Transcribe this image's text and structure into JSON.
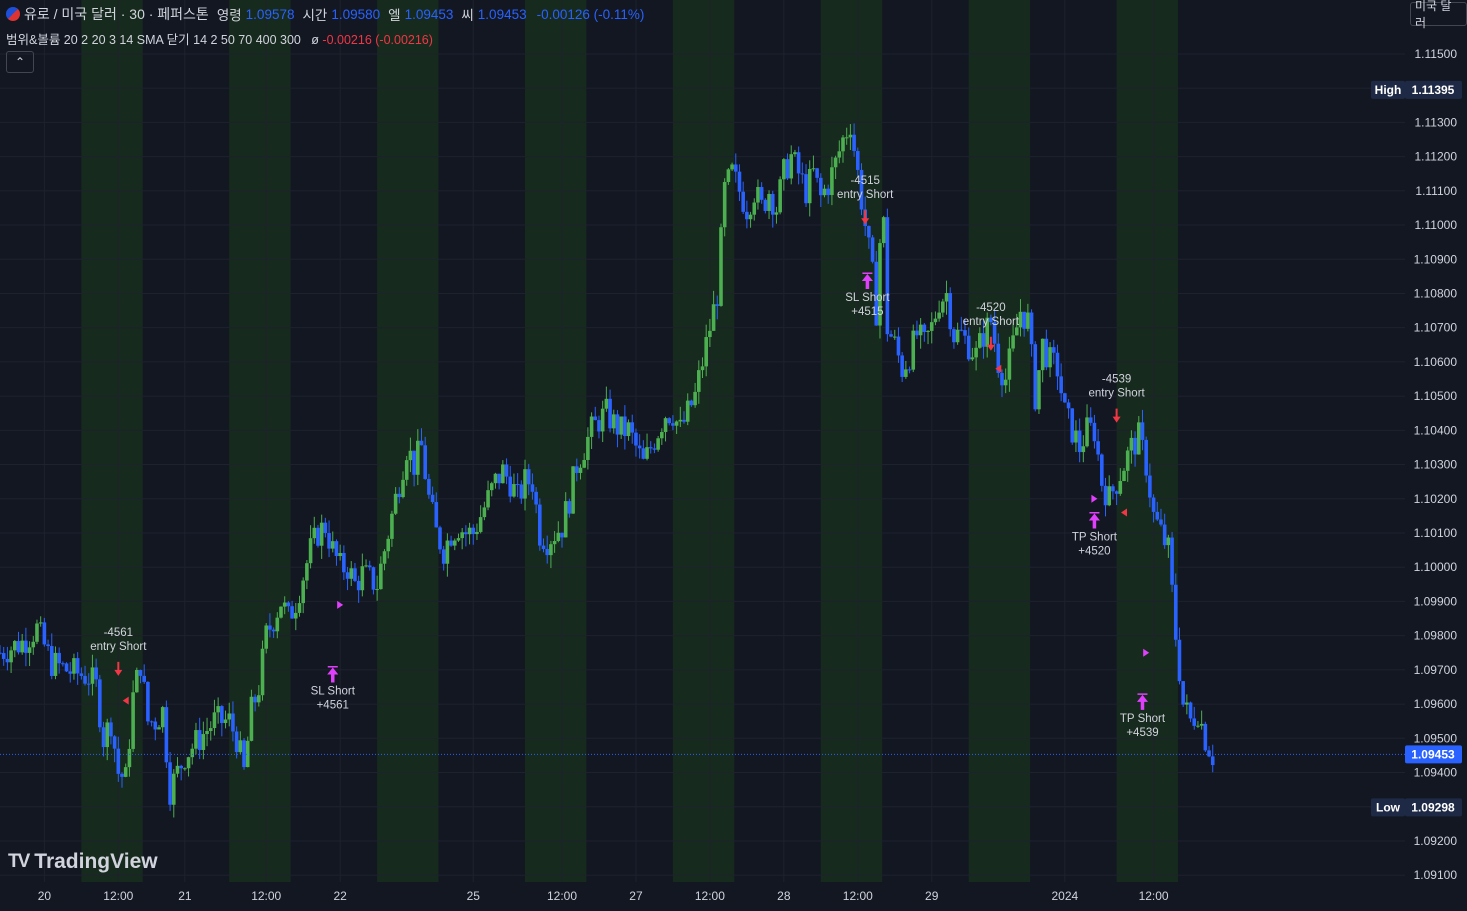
{
  "header": {
    "symbol": "유로 / 미국 달러 · 30 · 페퍼스톤",
    "open_label": "영령",
    "open": "1.09578",
    "high_label": "시간",
    "high": "1.09580",
    "low_label": "엘",
    "low": "1.09453",
    "close_label": "씨",
    "close": "1.09453",
    "change": "-0.00126 (-0.11%)"
  },
  "indicator": {
    "text": "범위&볼륨 20 2 20 3 14 SMA 닫기 14 2 50 70 400 300",
    "symbol": "ø",
    "value": "-0.00216 (-0.00216)"
  },
  "currency_button": "미국 달러",
  "logo_text": "TradingView",
  "colors": {
    "background": "#131722",
    "session_band": "#172a1e",
    "up": "#4caf50",
    "down": "#2962ff",
    "price_line": "#2962ff",
    "axis_text": "#d1d4dc",
    "marker_red": "#f23645",
    "marker_magenta": "#e040fb"
  },
  "chart_data": {
    "type": "candlestick",
    "title": "유로 / 미국 달러 · 30 · 페퍼스톤",
    "ylim": [
      1.0908,
      1.1157
    ],
    "y_ticks": [
      "1.11500",
      "1.11400",
      "1.11300",
      "1.11200",
      "1.11100",
      "1.11000",
      "1.10900",
      "1.10800",
      "1.10700",
      "1.10600",
      "1.10500",
      "1.10400",
      "1.10300",
      "1.10200",
      "1.10100",
      "1.10000",
      "1.09900",
      "1.09800",
      "1.09700",
      "1.09600",
      "1.09500",
      "1.09400",
      "1.09300",
      "1.09200",
      "1.09100"
    ],
    "x_range_hours": [
      0,
      190
    ],
    "x_ticks": [
      {
        "label": "20",
        "t": 6
      },
      {
        "label": "12:00",
        "t": 16
      },
      {
        "label": "21",
        "t": 25
      },
      {
        "label": "12:00",
        "t": 36
      },
      {
        "label": "22",
        "t": 46
      },
      {
        "label": "25",
        "t": 64
      },
      {
        "label": "12:00",
        "t": 76
      },
      {
        "label": "27",
        "t": 86
      },
      {
        "label": "12:00",
        "t": 96
      },
      {
        "label": "28",
        "t": 106
      },
      {
        "label": "12:00",
        "t": 116
      },
      {
        "label": "29",
        "t": 126
      },
      {
        "label": "2024",
        "t": 144
      },
      {
        "label": "12:00",
        "t": 156
      }
    ],
    "sessions": [
      [
        11,
        19.3
      ],
      [
        31,
        39.3
      ],
      [
        51,
        59.3
      ],
      [
        71,
        79.3
      ],
      [
        91,
        99.3
      ],
      [
        111,
        119.3
      ],
      [
        131,
        139.3
      ],
      [
        151,
        159.3
      ]
    ],
    "price_path": [
      [
        0,
        1.0975
      ],
      [
        3,
        1.0978
      ],
      [
        5,
        1.0982
      ],
      [
        7,
        1.0972
      ],
      [
        9,
        1.097
      ],
      [
        12,
        1.0968
      ],
      [
        13,
        1.0965
      ],
      [
        14,
        1.095
      ],
      [
        15,
        1.0955
      ],
      [
        16,
        1.094
      ],
      [
        17,
        1.0938
      ],
      [
        18,
        1.0962
      ],
      [
        19,
        1.0972
      ],
      [
        20,
        1.0955
      ],
      [
        21,
        1.0955
      ],
      [
        22,
        1.0958
      ],
      [
        23,
        1.0935
      ],
      [
        24,
        1.094
      ],
      [
        25,
        1.0945
      ],
      [
        27,
        1.095
      ],
      [
        29,
        1.0955
      ],
      [
        31,
        1.0955
      ],
      [
        32,
        1.095
      ],
      [
        33,
        1.094
      ],
      [
        34,
        1.0958
      ],
      [
        35,
        1.0965
      ],
      [
        36,
        1.098
      ],
      [
        37,
        1.0985
      ],
      [
        38,
        1.099
      ],
      [
        39,
        1.0985
      ],
      [
        40,
        1.099
      ],
      [
        42,
        1.1005
      ],
      [
        43,
        1.101
      ],
      [
        44,
        1.1012
      ],
      [
        45,
        1.1005
      ],
      [
        46,
        1.1
      ],
      [
        47,
        1.1
      ],
      [
        48,
        1.0995
      ],
      [
        49,
        1.0998
      ],
      [
        51,
        1.0995
      ],
      [
        52,
        1.1005
      ],
      [
        54,
        1.1025
      ],
      [
        55,
        1.1035
      ],
      [
        56,
        1.103
      ],
      [
        57,
        1.1035
      ],
      [
        58,
        1.102
      ],
      [
        59,
        1.101
      ],
      [
        60,
        1.1005
      ],
      [
        61,
        1.101
      ],
      [
        62,
        1.1012
      ],
      [
        63,
        1.101
      ],
      [
        64,
        1.101
      ],
      [
        65,
        1.1015
      ],
      [
        66,
        1.102
      ],
      [
        67,
        1.1025
      ],
      [
        68,
        1.1028
      ],
      [
        69,
        1.1025
      ],
      [
        70,
        1.102
      ],
      [
        71,
        1.1025
      ],
      [
        72,
        1.1025
      ],
      [
        73,
        1.101
      ],
      [
        74,
        1.1008
      ],
      [
        75,
        1.101
      ],
      [
        76,
        1.1012
      ],
      [
        77,
        1.102
      ],
      [
        78,
        1.103
      ],
      [
        79,
        1.1035
      ],
      [
        80,
        1.104
      ],
      [
        81,
        1.1043
      ],
      [
        82,
        1.1045
      ],
      [
        83,
        1.1042
      ],
      [
        84,
        1.104
      ],
      [
        85,
        1.104
      ],
      [
        86,
        1.1035
      ],
      [
        87,
        1.103
      ],
      [
        88,
        1.1035
      ],
      [
        89,
        1.104
      ],
      [
        90,
        1.1045
      ],
      [
        91,
        1.1045
      ],
      [
        92,
        1.104
      ],
      [
        93,
        1.1045
      ],
      [
        94,
        1.105
      ],
      [
        95,
        1.106
      ],
      [
        96,
        1.107
      ],
      [
        97,
        1.108
      ],
      [
        98,
        1.111
      ],
      [
        99,
        1.1115
      ],
      [
        100,
        1.111
      ],
      [
        101,
        1.1105
      ],
      [
        102,
        1.111
      ],
      [
        103,
        1.1105
      ],
      [
        104,
        1.111
      ],
      [
        105,
        1.1105
      ],
      [
        106,
        1.1115
      ],
      [
        107,
        1.112
      ],
      [
        108,
        1.1115
      ],
      [
        109,
        1.111
      ],
      [
        110,
        1.1115
      ],
      [
        111,
        1.1108
      ],
      [
        112,
        1.1112
      ],
      [
        113,
        1.1118
      ],
      [
        114,
        1.1125
      ],
      [
        115,
        1.113
      ],
      [
        116,
        1.1115
      ],
      [
        117,
        1.11
      ],
      [
        118,
        1.1085
      ],
      [
        118.5,
        1.1075
      ],
      [
        119,
        1.1095
      ],
      [
        119.5,
        1.11
      ],
      [
        120,
        1.107
      ],
      [
        121,
        1.1065
      ],
      [
        122,
        1.1058
      ],
      [
        123,
        1.1062
      ],
      [
        124,
        1.1068
      ],
      [
        125,
        1.1065
      ],
      [
        126,
        1.107
      ],
      [
        127,
        1.1078
      ],
      [
        128,
        1.108
      ],
      [
        129,
        1.1068
      ],
      [
        130,
        1.1068
      ],
      [
        131,
        1.1065
      ],
      [
        132,
        1.1062
      ],
      [
        133,
        1.1068
      ],
      [
        134,
        1.1072
      ],
      [
        135,
        1.106
      ],
      [
        136,
        1.1055
      ],
      [
        137,
        1.1065
      ],
      [
        138,
        1.1075
      ],
      [
        139,
        1.1072
      ],
      [
        140,
        1.105
      ],
      [
        141,
        1.1065
      ],
      [
        142,
        1.106
      ],
      [
        143,
        1.1058
      ],
      [
        144,
        1.1045
      ],
      [
        145,
        1.104
      ],
      [
        146,
        1.1035
      ],
      [
        147,
        1.104
      ],
      [
        148,
        1.104
      ],
      [
        149,
        1.1025
      ],
      [
        150,
        1.102
      ],
      [
        151,
        1.1025
      ],
      [
        152,
        1.103
      ],
      [
        153,
        1.1035
      ],
      [
        154,
        1.1038
      ],
      [
        155,
        1.103
      ],
      [
        156,
        1.1015
      ],
      [
        157,
        1.101
      ],
      [
        158,
        1.1005
      ],
      [
        159,
        1.098
      ],
      [
        160,
        1.096
      ],
      [
        161,
        1.0955
      ],
      [
        162,
        1.0958
      ],
      [
        163,
        1.095
      ],
      [
        164,
        1.0945
      ]
    ],
    "last_price": "1.09453",
    "high_marker": {
      "label": "High",
      "value": "1.11395"
    },
    "low_marker": {
      "label": "Low",
      "value": "1.09298"
    },
    "signals": [
      {
        "t": 16,
        "entry": 1.097,
        "pnl": "-4561",
        "label": "entry Short",
        "exit_t": 45,
        "exit_price": 1.0968,
        "exit_label": "SL Short",
        "exit_pnl": "+4561",
        "exit_sym": "S"
      },
      {
        "t": 117,
        "entry": 1.1102,
        "pnl": "-4515",
        "label": "entry Short",
        "exit_t": 117.3,
        "exit_price": 1.1083,
        "exit_label": "SL Short",
        "exit_pnl": "+4515",
        "exit_sym": "S"
      },
      {
        "t": 134,
        "entry": 1.1065,
        "pnl": "-4520",
        "label": "entry Short",
        "exit_t": 148,
        "exit_price": 1.1013,
        "exit_label": "TP Short",
        "exit_pnl": "+4520",
        "exit_sym": "T"
      },
      {
        "t": 151,
        "entry": 1.1044,
        "pnl": "-4539",
        "label": "entry Short",
        "exit_t": 154.5,
        "exit_price": 1.096,
        "exit_label": "TP Short",
        "exit_pnl": "+4539",
        "exit_sym": "T"
      }
    ],
    "small_markers": [
      {
        "t": 17,
        "price": 1.0961,
        "dir": "left"
      },
      {
        "t": 46,
        "price": 1.0989,
        "dir": "right"
      },
      {
        "t": 135,
        "price": 1.1058,
        "dir": "left"
      },
      {
        "t": 148,
        "price": 1.102,
        "dir": "right"
      },
      {
        "t": 152,
        "price": 1.1016,
        "dir": "left"
      },
      {
        "t": 155,
        "price": 1.0975,
        "dir": "right"
      }
    ]
  }
}
